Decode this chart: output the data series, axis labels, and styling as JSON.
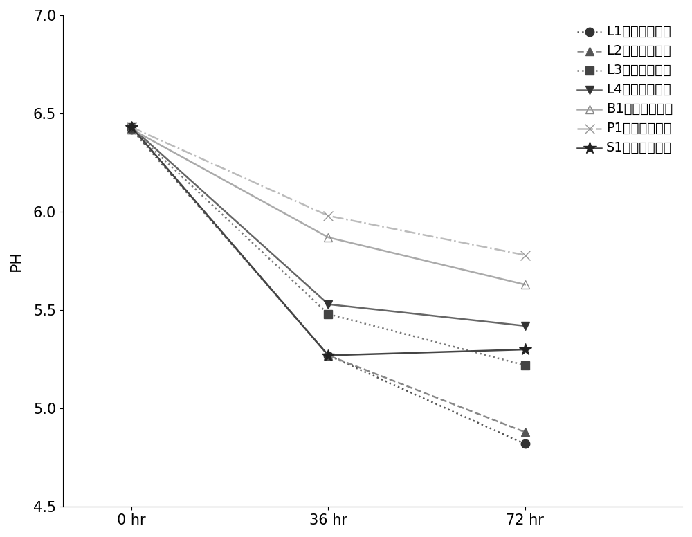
{
  "x_positions": [
    0,
    1,
    2
  ],
  "x_labels": [
    "0 hr",
    "36 hr",
    "72 hr"
  ],
  "ylabel": "PH",
  "ylim": [
    4.5,
    7.0
  ],
  "yticks": [
    4.5,
    5.0,
    5.5,
    6.0,
    6.5,
    7.0
  ],
  "series": [
    {
      "label": "L1（制造例２）",
      "values": [
        6.42,
        5.27,
        4.82
      ],
      "color": "#555555",
      "linestyle": "dotted",
      "marker": "o",
      "markersize": 9,
      "linewidth": 1.8,
      "markerfacecolor": "#333333",
      "markeredgecolor": "#333333"
    },
    {
      "label": "L2（制造例２）",
      "values": [
        6.43,
        5.27,
        4.88
      ],
      "color": "#888888",
      "linestyle": "dashed",
      "marker": "^",
      "markersize": 9,
      "linewidth": 1.8,
      "markerfacecolor": "#555555",
      "markeredgecolor": "#555555"
    },
    {
      "label": "L3（制造例２）",
      "values": [
        6.42,
        5.48,
        5.22
      ],
      "color": "#777777",
      "linestyle": "dotted",
      "marker": "s",
      "markersize": 9,
      "linewidth": 1.8,
      "markerfacecolor": "#444444",
      "markeredgecolor": "#444444"
    },
    {
      "label": "L4（制造例２）",
      "values": [
        6.43,
        5.53,
        5.42
      ],
      "color": "#666666",
      "linestyle": "solid",
      "marker": "v",
      "markersize": 9,
      "linewidth": 1.8,
      "markerfacecolor": "#333333",
      "markeredgecolor": "#333333"
    },
    {
      "label": "B1（制造例２）",
      "values": [
        6.42,
        5.87,
        5.63
      ],
      "color": "#aaaaaa",
      "linestyle": "solid",
      "marker": "^",
      "markersize": 9,
      "linewidth": 1.8,
      "markerfacecolor": "none",
      "markeredgecolor": "#888888"
    },
    {
      "label": "P1（制造例２）",
      "values": [
        6.43,
        5.98,
        5.78
      ],
      "color": "#bbbbbb",
      "linestyle": "dashdot",
      "marker": "x",
      "markersize": 10,
      "linewidth": 1.8,
      "markerfacecolor": "#999999",
      "markeredgecolor": "#999999"
    },
    {
      "label": "S1（制造例２）",
      "values": [
        6.43,
        5.27,
        5.3
      ],
      "color": "#444444",
      "linestyle": "solid",
      "marker": "*",
      "markersize": 13,
      "linewidth": 1.8,
      "markerfacecolor": "#222222",
      "markeredgecolor": "#222222"
    }
  ],
  "figure_bg": "#ffffff",
  "legend_fontsize": 14,
  "axis_fontsize": 16,
  "tick_fontsize": 15
}
